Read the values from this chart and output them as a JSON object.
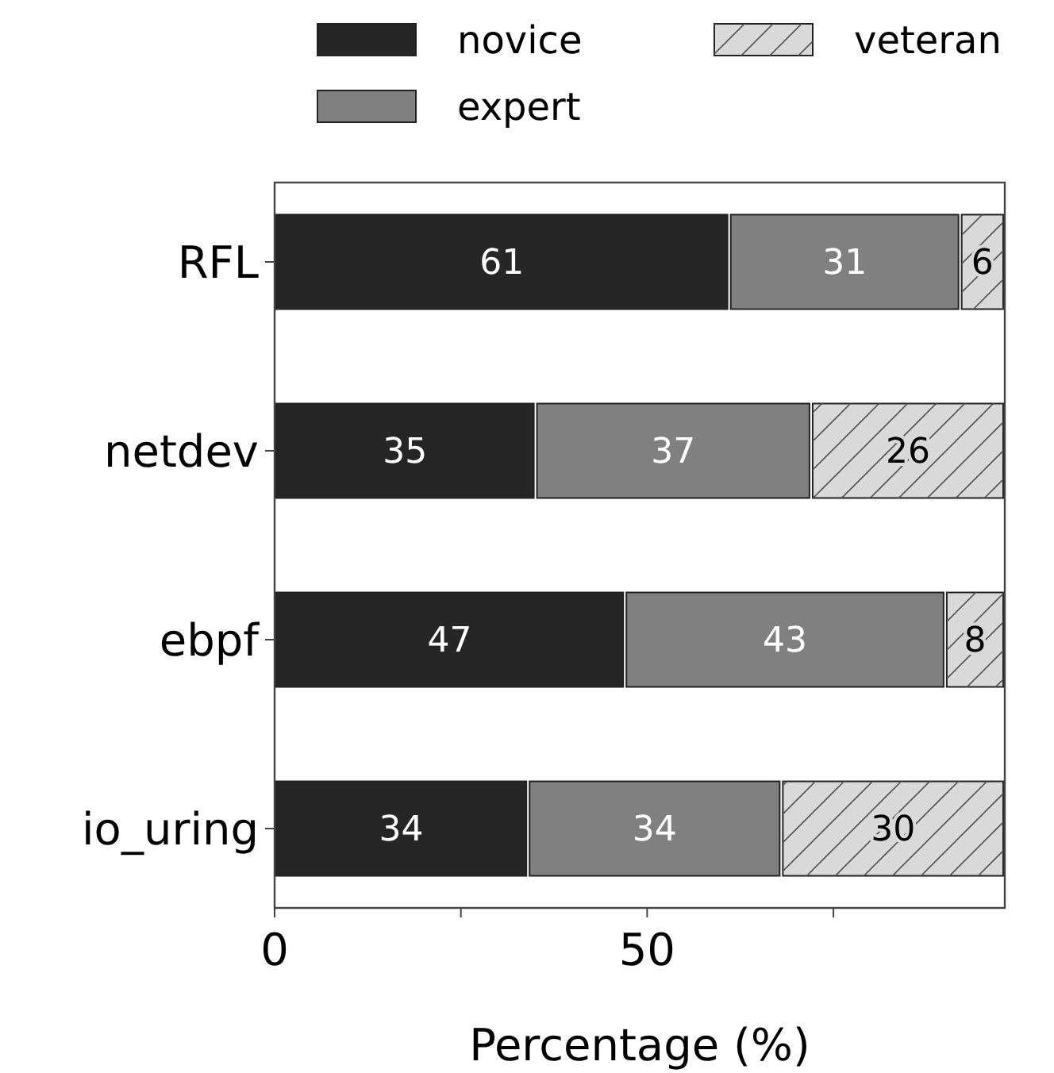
{
  "chart_data": {
    "type": "bar",
    "orientation": "horizontal",
    "stacked": true,
    "xlabel": "Percentage (%)",
    "categories": [
      "RFL",
      "netdev",
      "ebpf",
      "io_uring"
    ],
    "series": [
      {
        "name": "novice",
        "color": "#262626",
        "values": [
          61,
          35,
          47,
          34
        ]
      },
      {
        "name": "expert",
        "color": "#808080",
        "values": [
          31,
          37,
          43,
          34
        ]
      },
      {
        "name": "veteran",
        "color": "#d9d9d9",
        "values": [
          6,
          26,
          8,
          30
        ]
      }
    ],
    "xlim": [
      0,
      98
    ],
    "xticks": [
      0,
      {
        "value": 25,
        "label": null
      },
      50,
      {
        "value": 75,
        "label": null
      }
    ],
    "data_labels": true,
    "legend": "top",
    "grid": false
  }
}
